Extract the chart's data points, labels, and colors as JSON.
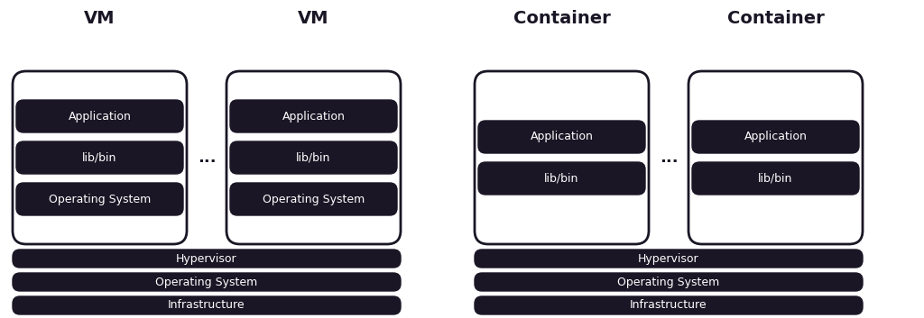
{
  "bg_color": "#ffffff",
  "dark_color": "#1a1625",
  "white_color": "#ffffff",
  "text_dark": "#1a1625",
  "text_light": "#ffffff",
  "border_color": "#1a1625",
  "fig_width": 10.24,
  "fig_height": 3.53,
  "vm_title1": "VM",
  "vm_title2": "VM",
  "container_title1": "Container",
  "container_title2": "Container",
  "vm_box1_layers": [
    "Application",
    "lib/bin",
    "Operating System"
  ],
  "vm_box2_layers": [
    "Application",
    "lib/bin",
    "Operating System"
  ],
  "container_box1_layers": [
    "Application",
    "lib/bin"
  ],
  "container_box2_layers": [
    "Application",
    "lib/bin"
  ],
  "vm_base_layers": [
    "Hypervisor",
    "Operating System",
    "Infrastructure"
  ],
  "container_base_layers": [
    "Hypervisor",
    "Operating System",
    "Infrastructure"
  ],
  "dots": "..."
}
